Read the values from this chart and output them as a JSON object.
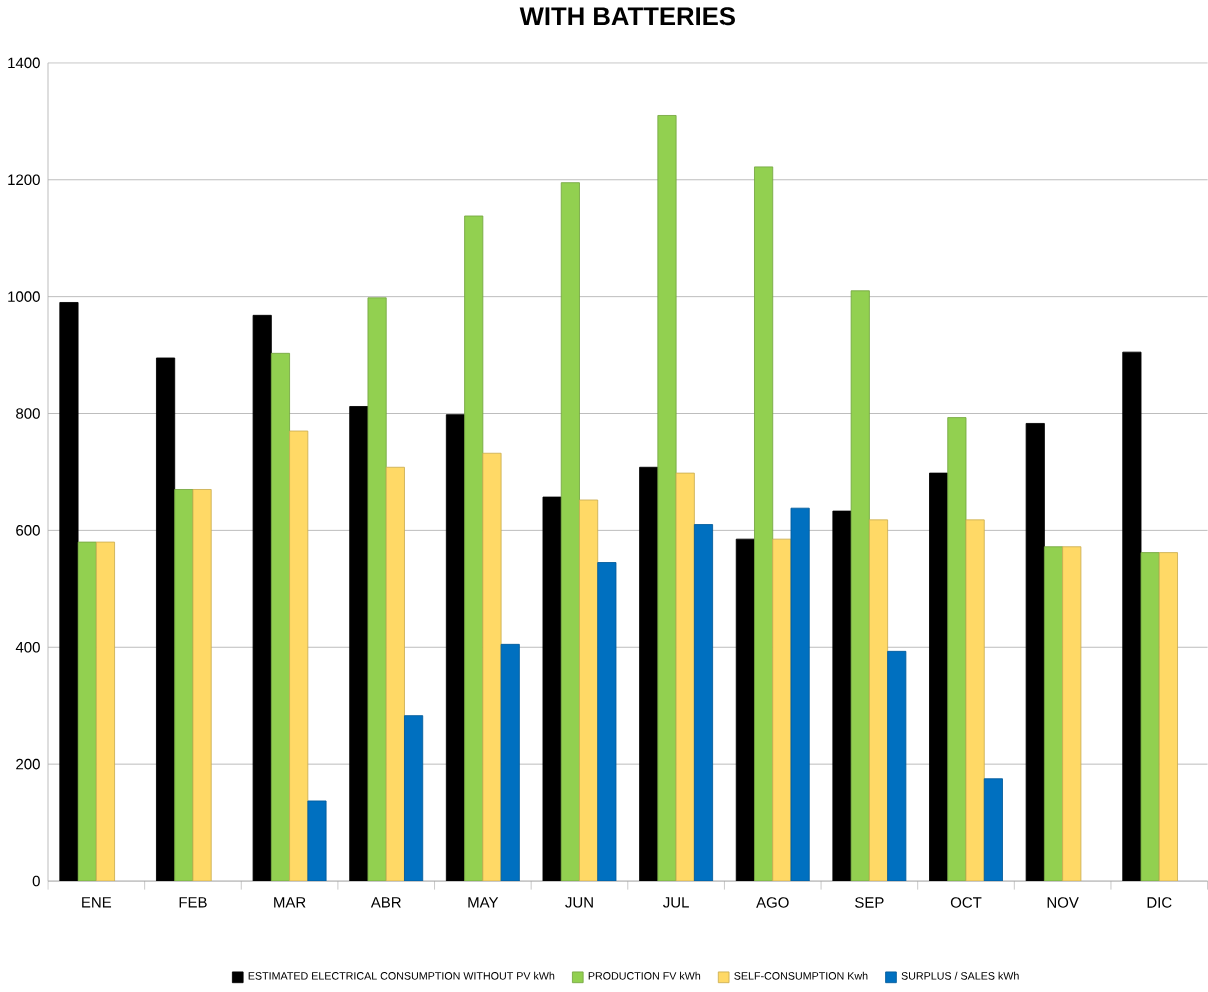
{
  "chart_data": {
    "type": "bar",
    "title": "WITH BATTERIES",
    "categories": [
      "ENE",
      "FEB",
      "MAR",
      "ABR",
      "MAY",
      "JUN",
      "JUL",
      "AGO",
      "SEP",
      "OCT",
      "NOV",
      "DIC"
    ],
    "series": [
      {
        "name": "ESTIMATED ELECTRICAL CONSUMPTION WITHOUT PV kWh",
        "color": "#000000",
        "values": [
          990,
          895,
          968,
          812,
          798,
          657,
          708,
          585,
          633,
          698,
          783,
          905
        ]
      },
      {
        "name": "PRODUCTION FV kWh",
        "color": "#92d050",
        "values": [
          580,
          670,
          903,
          998,
          1138,
          1195,
          1310,
          1222,
          1010,
          793,
          572,
          562
        ]
      },
      {
        "name": "SELF-CONSUMPTION Kwh",
        "color": "#ffd966",
        "values": [
          580,
          670,
          770,
          708,
          732,
          652,
          698,
          585,
          618,
          618,
          572,
          562
        ]
      },
      {
        "name": "SURPLUS / SALES kWh",
        "color": "#0070c0",
        "values": [
          null,
          null,
          137,
          283,
          405,
          545,
          610,
          638,
          393,
          175,
          null,
          null
        ]
      }
    ],
    "ylim": [
      0,
      1400
    ],
    "yticks": [
      0,
      200,
      400,
      600,
      800,
      1000,
      1200,
      1400
    ],
    "grid": "y",
    "legend": "bottom"
  }
}
